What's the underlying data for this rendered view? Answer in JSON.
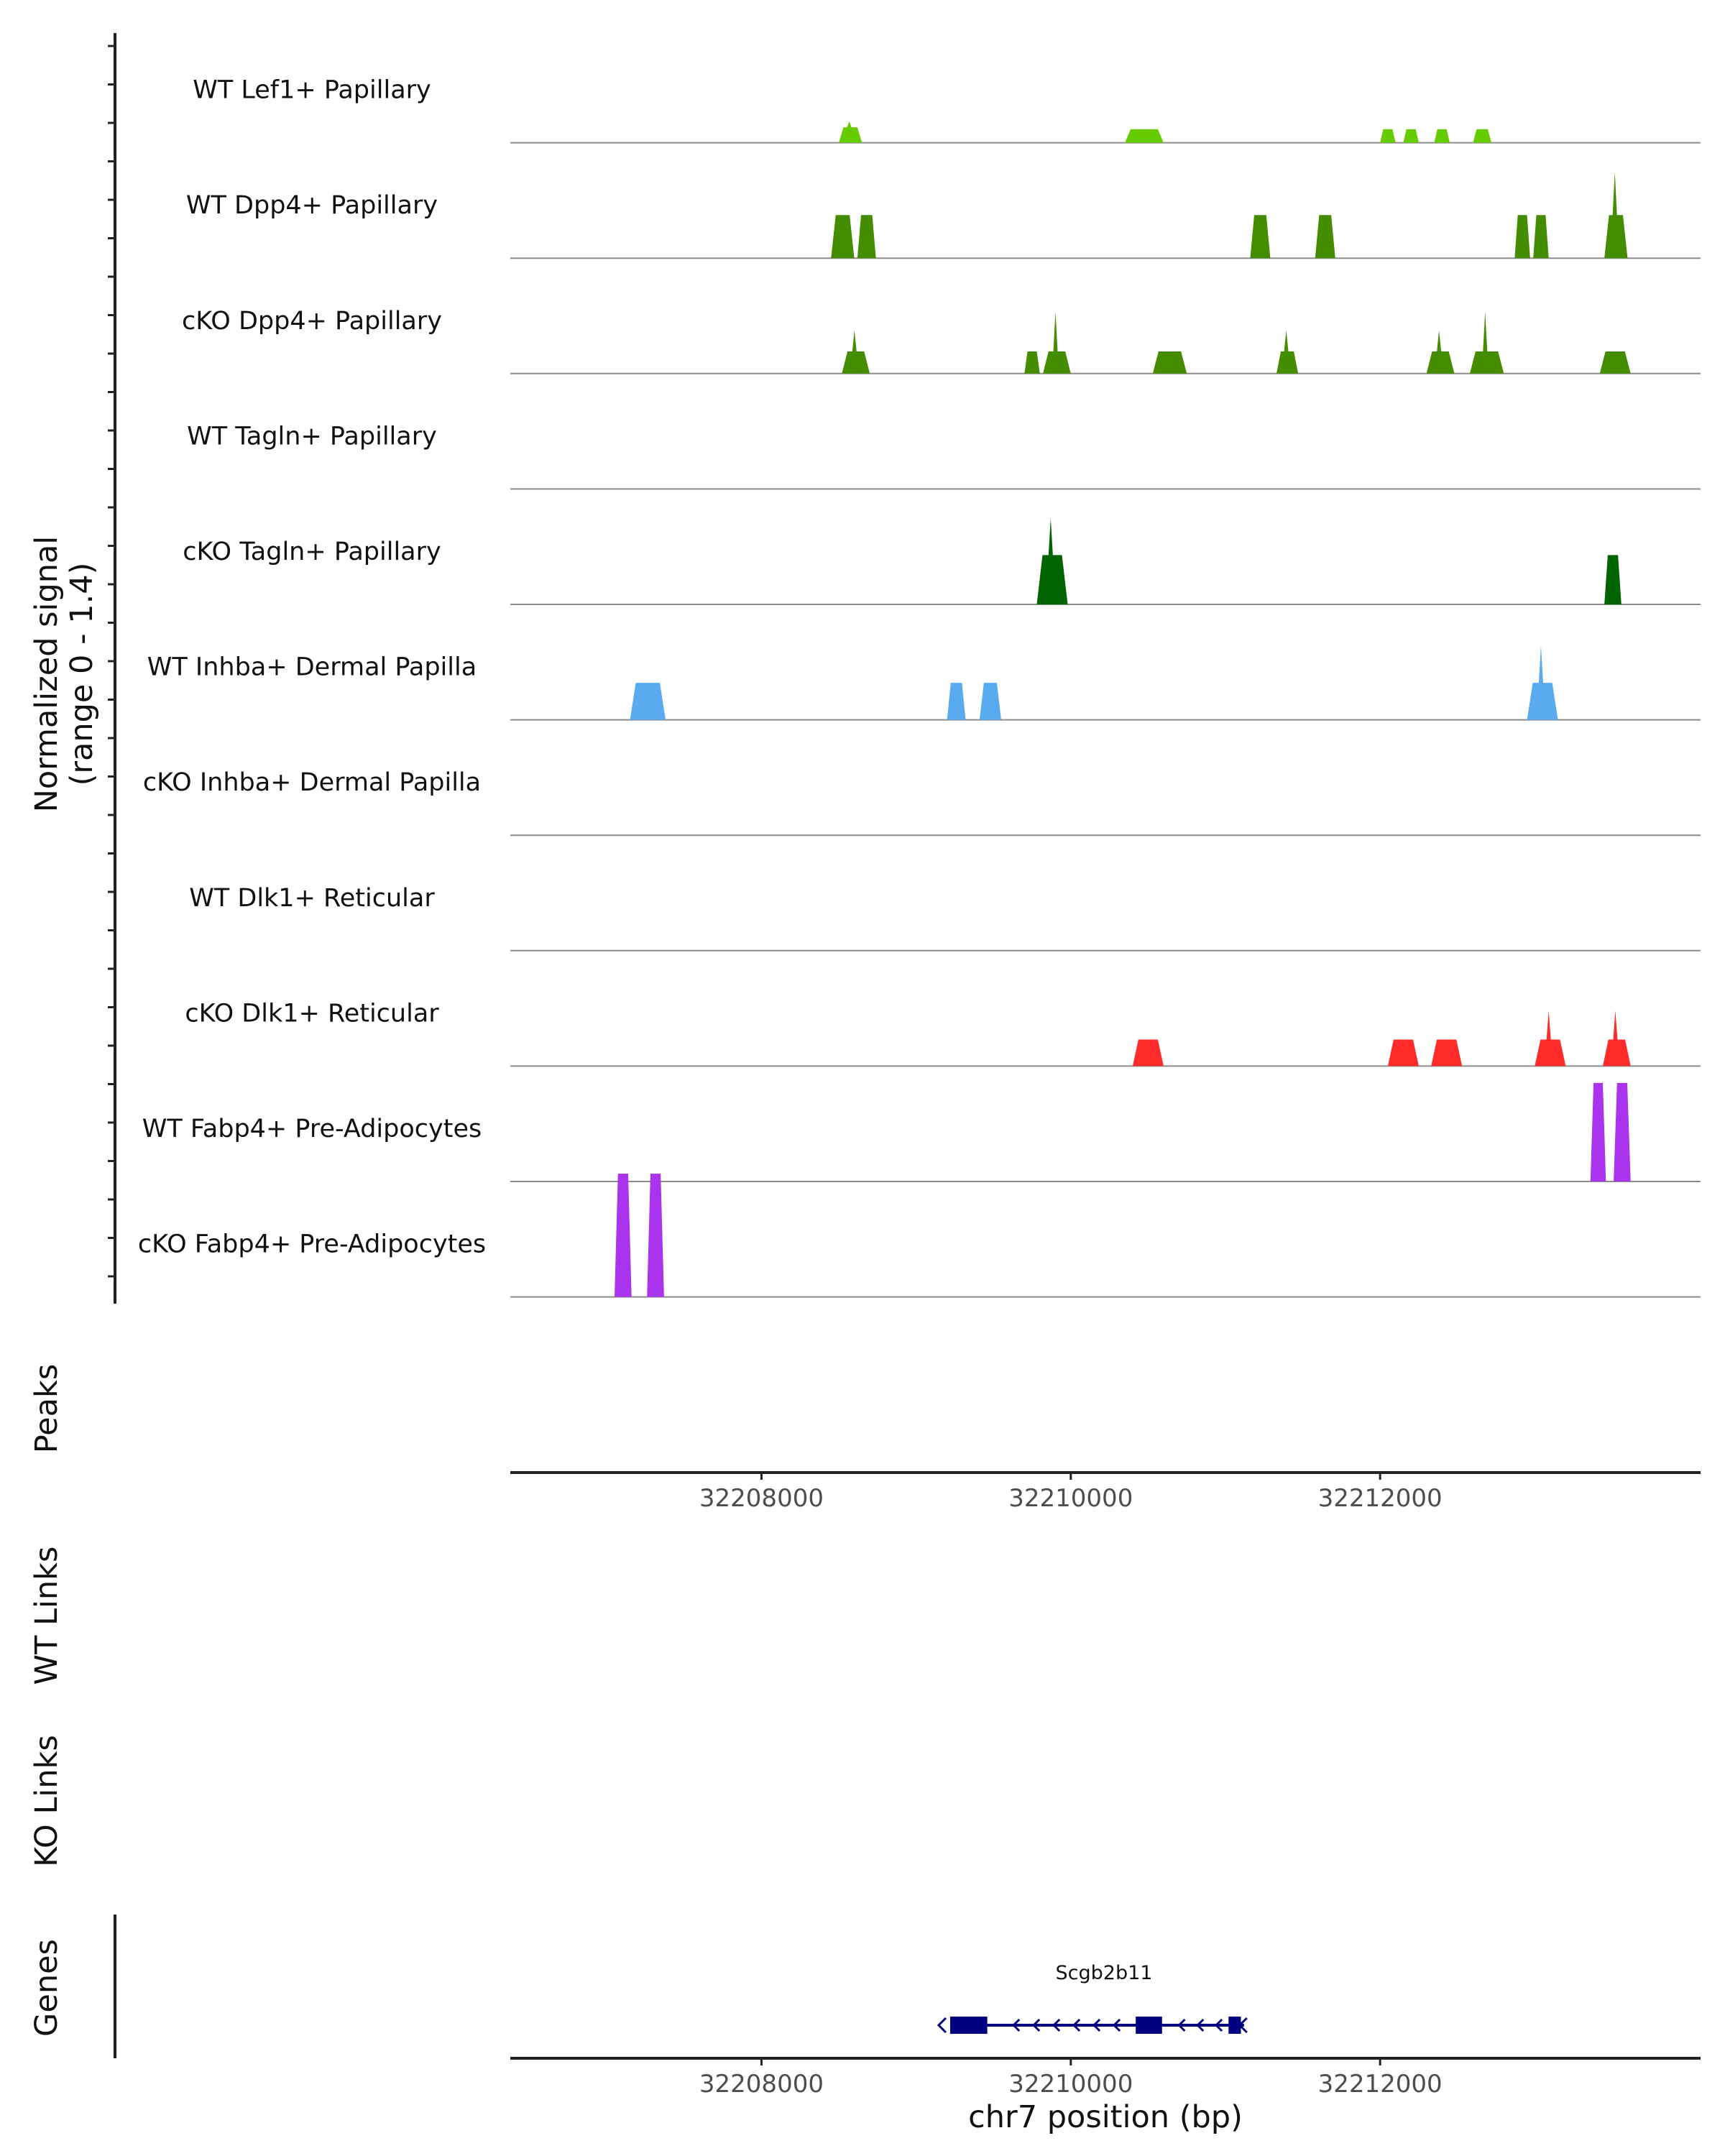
{
  "chart_data": {
    "type": "area",
    "title": "",
    "ylabel": "Normalized signal",
    "ylabel_range": "(range 0 - 1.4)",
    "ylim": [
      0,
      1.4
    ],
    "xlabel": "chr7 position (bp)",
    "xlim": [
      32206376,
      32214072
    ],
    "x_ticks": [
      32208000,
      32210000,
      32212000
    ],
    "x_tick_labels": [
      "32208000",
      "32210000",
      "32212000"
    ],
    "series": [
      {
        "name": "WT Lef1+ Papillary",
        "color": "#66cc00",
        "regions": [
          [
            32208500,
            32208650,
            0.25,
            0.35
          ],
          [
            32210350,
            32210600,
            0.22
          ],
          [
            32212000,
            32212100,
            0.22
          ],
          [
            32212150,
            32212250,
            0.22
          ],
          [
            32212350,
            32212450,
            0.22
          ],
          [
            32212600,
            32212720,
            0.22
          ]
        ]
      },
      {
        "name": "WT Dpp4+ Papillary",
        "color": "#448c00",
        "regions": [
          [
            32208450,
            32208600,
            0.7
          ],
          [
            32208620,
            32208740,
            0.7
          ],
          [
            32211160,
            32211290,
            0.7
          ],
          [
            32211580,
            32211710,
            0.7
          ],
          [
            32212870,
            32212970,
            0.7
          ],
          [
            32212990,
            32213090,
            0.7
          ],
          [
            32213450,
            32213600,
            0.7,
            1.4
          ]
        ]
      },
      {
        "name": "cKO Dpp4+ Papillary",
        "color": "#448c00",
        "regions": [
          [
            32208520,
            32208700,
            0.36,
            0.7
          ],
          [
            32209700,
            32209800,
            0.36
          ],
          [
            32209820,
            32210000,
            0.36,
            1.0
          ],
          [
            32210530,
            32210750,
            0.36
          ],
          [
            32211330,
            32211470,
            0.36,
            0.7
          ],
          [
            32212300,
            32212480,
            0.36,
            0.7
          ],
          [
            32212580,
            32212800,
            0.36,
            1.0
          ],
          [
            32213420,
            32213620,
            0.36
          ]
        ]
      },
      {
        "name": "WT Tagln+ Papillary",
        "color": "#448c00",
        "regions": []
      },
      {
        "name": "cKO Tagln+ Papillary",
        "color": "#006400",
        "regions": [
          [
            32209780,
            32209980,
            0.8,
            1.4
          ],
          [
            32213450,
            32213560,
            0.8
          ]
        ]
      },
      {
        "name": "WT Inhba+ Dermal Papilla",
        "color": "#5aaaf0",
        "regions": [
          [
            32207150,
            32207380,
            0.6
          ],
          [
            32209200,
            32209320,
            0.6
          ],
          [
            32209410,
            32209550,
            0.6
          ],
          [
            32212950,
            32213150,
            0.6,
            1.2
          ]
        ]
      },
      {
        "name": "cKO Inhba+ Dermal Papilla",
        "color": "#5aaaf0",
        "regions": []
      },
      {
        "name": "WT Dlk1+ Reticular",
        "color": "#ff2a2a",
        "regions": []
      },
      {
        "name": "cKO Dlk1+ Reticular",
        "color": "#ff2a2a",
        "regions": [
          [
            32210400,
            32210600,
            0.43
          ],
          [
            32212050,
            32212250,
            0.43
          ],
          [
            32212330,
            32212530,
            0.43
          ],
          [
            32213000,
            32213200,
            0.43,
            0.9
          ],
          [
            32213440,
            32213620,
            0.43,
            0.9
          ]
        ]
      },
      {
        "name": "WT Fabp4+ Pre-Adipocytes",
        "color": "#aa33ee",
        "regions": [
          [
            32213360,
            32213460,
            1.6
          ],
          [
            32213510,
            32213620,
            1.6
          ]
        ]
      },
      {
        "name": "cKO Fabp4+ Pre-Adipocytes",
        "color": "#aa33ee",
        "regions": [
          [
            32207050,
            32207160,
            2.0
          ],
          [
            32207260,
            32207370,
            2.0
          ]
        ]
      }
    ],
    "panels": [
      "Peaks",
      "WT Links",
      "KO Links",
      "Genes"
    ],
    "gene": {
      "name": "Scgb2b11",
      "strand": "-",
      "start": 32209220,
      "end": 32211120,
      "exons": [
        [
          32209220,
          32209460
        ],
        [
          32210420,
          32210590
        ],
        [
          32211020,
          32211100
        ]
      ],
      "color": "#000080"
    }
  }
}
